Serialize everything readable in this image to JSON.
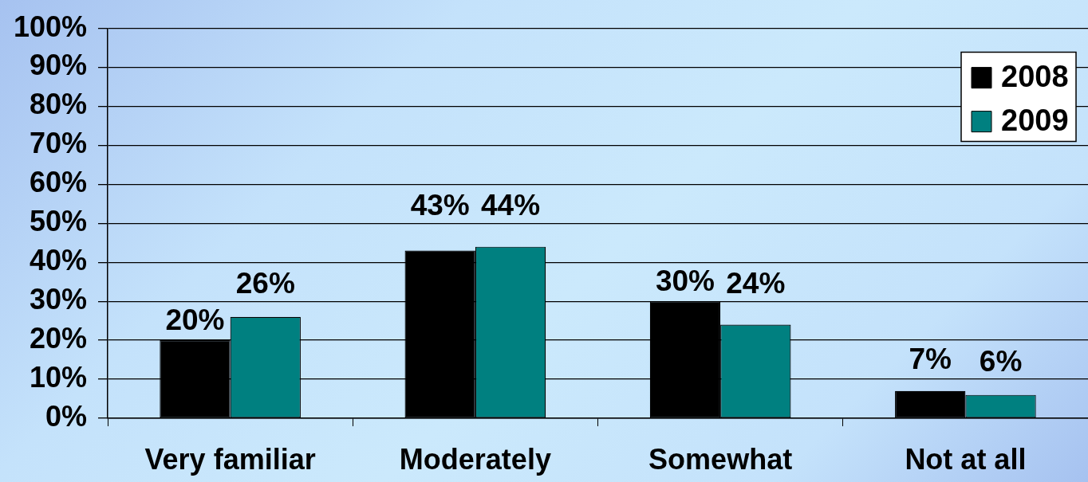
{
  "chart_data": {
    "type": "bar",
    "categories": [
      "Very familiar",
      "Moderately",
      "Somewhat",
      "Not at all"
    ],
    "series": [
      {
        "name": "2008",
        "color": "#000000",
        "values": [
          20,
          43,
          30,
          7
        ],
        "value_labels": [
          "20%",
          "43%",
          "30%",
          "7%"
        ]
      },
      {
        "name": "2009",
        "color": "#008080",
        "values": [
          26,
          44,
          24,
          6
        ],
        "value_labels": [
          "26%",
          "44%",
          "24%",
          "6%"
        ]
      }
    ],
    "ylim": [
      0,
      100
    ],
    "yticks": [
      {
        "value": 0,
        "label": "0%"
      },
      {
        "value": 10,
        "label": "10%"
      },
      {
        "value": 20,
        "label": "20%"
      },
      {
        "value": 30,
        "label": "30%"
      },
      {
        "value": 40,
        "label": "40%"
      },
      {
        "value": 50,
        "label": "50%"
      },
      {
        "value": 60,
        "label": "60%"
      },
      {
        "value": 70,
        "label": "70%"
      },
      {
        "value": 80,
        "label": "80%"
      },
      {
        "value": 90,
        "label": "90%"
      },
      {
        "value": 100,
        "label": "100%"
      }
    ],
    "grid": "y",
    "legend": "top right"
  }
}
